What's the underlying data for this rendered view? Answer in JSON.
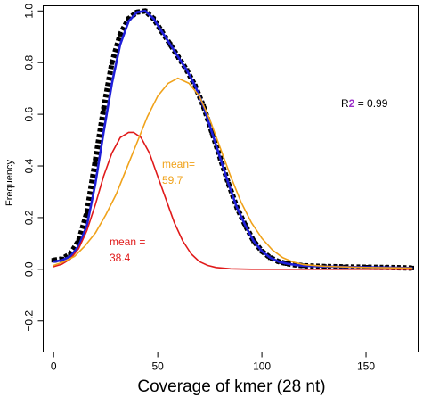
{
  "chart_data": {
    "type": "line",
    "xlabel": "Coverage of kmer (28 nt)",
    "ylabel": "Frequency",
    "xlim": [
      -5,
      175
    ],
    "ylim": [
      -0.32,
      1.02
    ],
    "x_ticks": [
      0,
      50,
      100,
      150
    ],
    "y_ticks": [
      -0.2,
      0.0,
      0.2,
      0.4,
      0.6,
      0.8,
      1.0
    ],
    "x_tick_labels": [
      "0",
      "50",
      "100",
      "150"
    ],
    "y_tick_labels": [
      "−0.2",
      "0.0",
      "0.2",
      "0.4",
      "0.6",
      "0.8",
      "1.0"
    ],
    "grid": false,
    "series": [
      {
        "style": "black-squares",
        "color": "#000000",
        "x": [
          0,
          4,
          8,
          12,
          16,
          20,
          24,
          28,
          32,
          36,
          40,
          44,
          48,
          52,
          56,
          60,
          64,
          68,
          72,
          76,
          80,
          84,
          88,
          92,
          96,
          100,
          104,
          108,
          112,
          116,
          120,
          130,
          140,
          150,
          160,
          172
        ],
        "y": [
          0.035,
          0.04,
          0.06,
          0.11,
          0.22,
          0.42,
          0.62,
          0.8,
          0.91,
          0.97,
          0.995,
          1.0,
          0.97,
          0.92,
          0.87,
          0.82,
          0.77,
          0.71,
          0.63,
          0.53,
          0.43,
          0.33,
          0.24,
          0.17,
          0.11,
          0.07,
          0.045,
          0.03,
          0.022,
          0.017,
          0.014,
          0.011,
          0.009,
          0.008,
          0.007,
          0.005
        ]
      },
      {
        "style": "line",
        "color": "#1f1fd9",
        "x": [
          0,
          4,
          8,
          12,
          16,
          20,
          24,
          28,
          32,
          36,
          40,
          44,
          48,
          52,
          56,
          60,
          64,
          68,
          72,
          76,
          80,
          84,
          88,
          92,
          96,
          100,
          104,
          108,
          112,
          116,
          120,
          130,
          140,
          150,
          160,
          172
        ],
        "y": [
          0.03,
          0.035,
          0.05,
          0.09,
          0.17,
          0.33,
          0.53,
          0.72,
          0.87,
          0.96,
          0.995,
          1.0,
          0.97,
          0.92,
          0.87,
          0.82,
          0.77,
          0.71,
          0.63,
          0.53,
          0.43,
          0.33,
          0.24,
          0.17,
          0.11,
          0.07,
          0.045,
          0.03,
          0.022,
          0.017,
          0.014,
          0.011,
          0.009,
          0.008,
          0.007,
          0.005
        ]
      },
      {
        "style": "line",
        "color": "#e01a1a",
        "x": [
          0,
          4,
          8,
          12,
          16,
          20,
          24,
          28,
          32,
          36,
          38.4,
          42,
          46,
          50,
          54,
          58,
          62,
          66,
          70,
          74,
          78,
          85,
          95,
          110,
          172
        ],
        "y": [
          0.01,
          0.02,
          0.04,
          0.08,
          0.15,
          0.25,
          0.36,
          0.45,
          0.51,
          0.53,
          0.53,
          0.51,
          0.45,
          0.36,
          0.27,
          0.18,
          0.11,
          0.06,
          0.03,
          0.015,
          0.007,
          0.002,
          0.0,
          0.0,
          0.0
        ]
      },
      {
        "style": "line",
        "color": "#f0a21a",
        "x": [
          0,
          5,
          10,
          15,
          20,
          25,
          30,
          35,
          40,
          45,
          50,
          55,
          59.7,
          65,
          70,
          75,
          80,
          85,
          90,
          95,
          100,
          105,
          110,
          115,
          120,
          130,
          140,
          150,
          172
        ],
        "y": [
          0.015,
          0.03,
          0.05,
          0.09,
          0.14,
          0.21,
          0.29,
          0.39,
          0.49,
          0.59,
          0.67,
          0.72,
          0.74,
          0.72,
          0.67,
          0.58,
          0.47,
          0.36,
          0.26,
          0.18,
          0.12,
          0.075,
          0.045,
          0.028,
          0.018,
          0.012,
          0.009,
          0.007,
          0.005
        ]
      }
    ],
    "annotations": [
      {
        "lines": [
          "mean =",
          "38.4"
        ],
        "color": "#e01a1a"
      },
      {
        "lines": [
          "mean=",
          "59.7"
        ],
        "color": "#f0a21a"
      }
    ],
    "r2": {
      "prefix": "R",
      "superscript": "2",
      "suffix": " = 0.99"
    }
  }
}
